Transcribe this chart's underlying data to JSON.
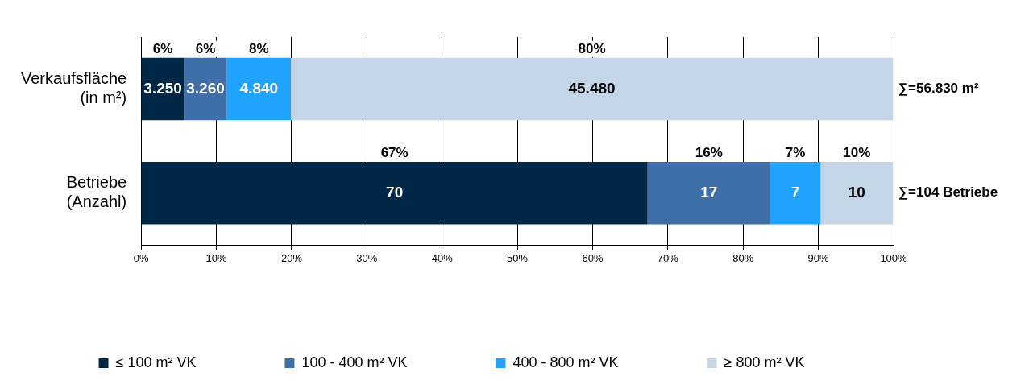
{
  "chart_data": {
    "type": "bar",
    "orientation": "horizontal",
    "stacked": true,
    "categories": [
      "Verkaufsfläche (in m²)",
      "Betriebe (Anzahl)"
    ],
    "series": [
      {
        "name": "≤ 100 m² VK",
        "color": "#002846",
        "values": [
          5.7,
          67.3
        ],
        "value_labels": [
          "6%",
          "67%"
        ]
      },
      {
        "name": "100 - 400 m² VK",
        "color": "#3f6fa8",
        "values": [
          5.7,
          16.3
        ],
        "value_labels": [
          "6%",
          "16%"
        ]
      },
      {
        "name": "400 - 800 m² VK",
        "color": "#1fa3ff",
        "values": [
          8.5,
          6.7
        ],
        "value_labels": [
          "8%",
          "7%"
        ]
      },
      {
        "name": "≥ 800 m² VK",
        "color": "#c5d5e8",
        "values": [
          80.0,
          9.6
        ],
        "value_labels": [
          "80%",
          "10%"
        ]
      }
    ],
    "xlim": [
      0,
      100
    ],
    "xticks": [
      {
        "value": 0,
        "label": "0%"
      },
      {
        "value": 10,
        "label": "10%"
      },
      {
        "value": 20,
        "label": "20%"
      },
      {
        "value": 30,
        "label": "30%"
      },
      {
        "value": 40,
        "label": "40%"
      },
      {
        "value": 50,
        "label": "50%"
      },
      {
        "value": 60,
        "label": "60%"
      },
      {
        "value": 70,
        "label": "70%"
      },
      {
        "value": 80,
        "label": "80%"
      },
      {
        "value": 90,
        "label": "90%"
      },
      {
        "value": 100,
        "label": "100%"
      }
    ],
    "grid": "x",
    "legend": "bottom",
    "annotations": [
      "3.250",
      "70",
      "3.260",
      "17",
      "4.840",
      "7",
      "45.480",
      "10",
      "∑=56.830 m²",
      "∑=104 Betriebe"
    ]
  }
}
